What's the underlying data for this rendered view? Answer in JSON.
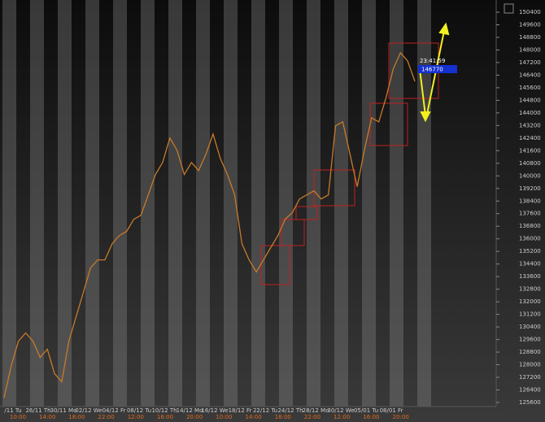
{
  "chart_data": {
    "type": "line",
    "series": [
      {
        "color": "#c87a2a",
        "values": [
          125890,
          127950,
          129500,
          130020,
          129500,
          128470,
          128990,
          127440,
          126920,
          129500,
          131050,
          132600,
          134150,
          134660,
          134660,
          135690,
          136210,
          136470,
          137240,
          137500,
          138790,
          140080,
          140850,
          142400,
          141630,
          140080,
          140850,
          140340,
          141370,
          142660,
          141110,
          140080,
          138790,
          135690,
          134660,
          133890,
          134660,
          135440,
          136210,
          137240,
          137660,
          138530,
          138790,
          139050,
          138530,
          138790,
          143180,
          143430,
          141370,
          139310,
          141630,
          143690,
          143430,
          144980,
          146790,
          147820,
          147300,
          146010
        ]
      }
    ],
    "ylim": [
      125600,
      150400
    ],
    "yticks": [
      125600,
      126400,
      127200,
      128000,
      128800,
      129600,
      130400,
      131200,
      132000,
      132800,
      133600,
      134400,
      135200,
      136000,
      136800,
      137600,
      138400,
      139200,
      140000,
      140800,
      141600,
      142400,
      143200,
      144000,
      144800,
      145600,
      146400,
      147200,
      148000,
      148800,
      149600,
      150400
    ],
    "date_labels": [
      "/11 Tu",
      "26/11 Th",
      "30/11 Mo",
      "02/12 We",
      "04/12 Fr",
      "08/12 Tu",
      "10/12 Th",
      "14/12 Mo",
      "16/12 We",
      "18/12 Fr",
      "22/12 Tu",
      "24/12 Th",
      "28/12 Mo",
      "30/12 We",
      "05/01 Tu",
      "08/01 Fr"
    ],
    "time_labels": [
      "10:00",
      "14:00",
      "18:00",
      "22:00",
      "12:00",
      "16:00",
      "20:00",
      "10:00",
      "14:00",
      "18:00",
      "22:00",
      "12:00",
      "16:00",
      "20:00"
    ],
    "clock": "23:41:59",
    "last_price": 146770
  }
}
